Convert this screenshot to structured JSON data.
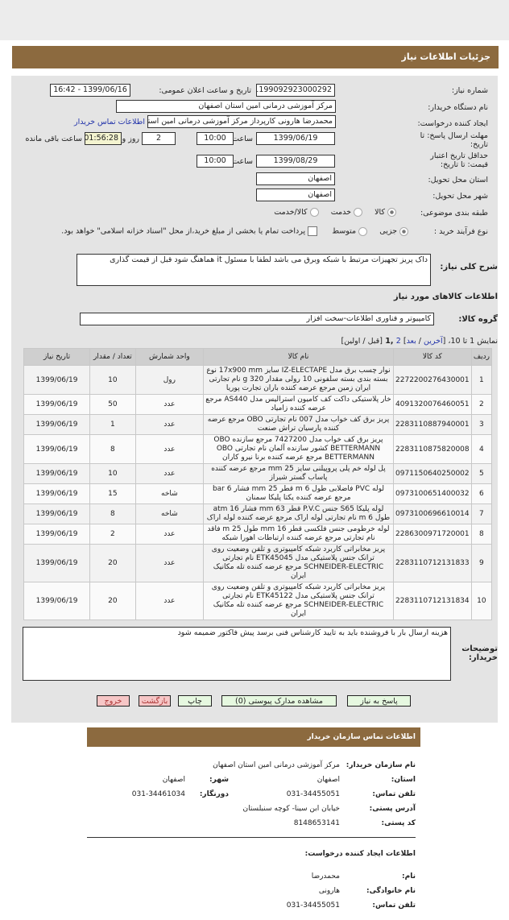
{
  "header": {
    "title": "جزئیات اطلاعات نیاز"
  },
  "form": {
    "need_number_label": "شماره نیاز:",
    "need_number": "1199092923000292",
    "announce_label": "تاریخ و ساعت اعلان عمومی:",
    "announce": "1399/06/16 - 16:42",
    "buyer_label": "نام دستگاه خریدار:",
    "buyer": "مرکز آموزشی درمانی امین استان اصفهان",
    "creator_label": "ایجاد کننده درخواست:",
    "creator": "محمدرضا هارونی کارپرداز مرکز آموزشی درمانی امین استان اصفهان",
    "contact_link": "اطلاعات تماس خریدار",
    "deadline_label": "مهلت ارسال پاسخ: تا تاریخ:",
    "deadline_date": "1399/06/19",
    "time_label": "ساعت",
    "deadline_time": "10:00",
    "days": "2",
    "days_label": "روز و",
    "remaining": "01:56:28",
    "remaining_label": "ساعت باقی مانده",
    "validity_label": "حداقل تاریخ اعتبار قیمت: تا تاریخ:",
    "validity_date": "1399/08/29",
    "validity_time": "10:00",
    "province_label": "استان محل تحویل:",
    "province": "اصفهان",
    "city_label": "شهر محل تحویل:",
    "city": "اصفهان",
    "category_label": "طبقه بندی موضوعی:",
    "category_options": [
      "کالا",
      "خدمت",
      "کالا/خدمت"
    ],
    "category_selected": "کالا",
    "process_label": "نوع فرآیند خرید :",
    "process_options": [
      "جزیی",
      "متوسط"
    ],
    "process_selected": "جزیی",
    "treasury_text": "پرداخت تمام یا بخشی از مبلغ خرید،از محل \"اسناد خزانه اسلامی\" خواهد بود.",
    "desc_label": "شرح کلی نیاز:",
    "desc": "داک پریز تجهیزات مرتبط با شبکه وبرق می باشد لطفا با مسئول it هماهنگ شود قبل از قیمت گذاری",
    "goods_heading": "اطلاعات کالاهای مورد نیاز",
    "group_label": "گروه کالا:",
    "group": "کامپیوتر و فناوری اطلاعات-سخت افزار"
  },
  "pagination": {
    "prefix": "نمایش 1 تا 10، [",
    "last": "آخرین",
    "sep": " / ",
    "next": "بعد",
    "mid": "] ",
    "p2": "2",
    "p1": " ,1 ",
    "suffix": "[قبل / اولین]"
  },
  "table": {
    "headers": [
      "ردیف",
      "کد کالا",
      "نام کالا",
      "واحد شمارش",
      "تعداد / مقدار",
      "تاریخ نیاز"
    ],
    "rows": [
      [
        "1",
        "2272200276430001",
        "نوار چسب برق مدل IZ-ELECTAPE سایز 17x900 mm نوع بسته بندی بسته سلفونی 10 رولی مقدار 320 g نام تجارتی ایران زمین مرجع عرضه کننده باران تجارت پوریا",
        "رول",
        "10",
        "1399/06/19"
      ],
      [
        "2",
        "4091320076460051",
        "خار پلاستیکی داکت کف کامیون استرالیس مدل AS440 مرجع عرضه کننده زامیاد",
        "عدد",
        "50",
        "1399/06/19"
      ],
      [
        "3",
        "2283110887940001",
        "پریز برق کف خواب مدل 007 نام تجارتی OBO مرجع عرضه کننده پارسیان تراش صنعت",
        "عدد",
        "1",
        "1399/06/19"
      ],
      [
        "4",
        "2283110875820008",
        "پریز برق کف خواب مدل 7427200 مرجع سازنده OBO BETTERMANN کشور سازنده آلمان نام تجارتی OBO BETTERMANN مرجع عرضه کننده برنا نیرو کاران",
        "عدد",
        "8",
        "1399/06/19"
      ],
      [
        "5",
        "0971150640250002",
        "پل لوله خم پلی پروپیلنی سایز 25 mm مرجع عرضه کننده پاساب گستر شیراز",
        "عدد",
        "10",
        "1399/06/19"
      ],
      [
        "6",
        "0973100651400032",
        "لوله PVC فاضلابی طول 6 m قطر 25 mm فشار 6 bar مرجع عرضه کننده یکتا پلیکا سمنان",
        "شاخه",
        "15",
        "1399/06/19"
      ],
      [
        "7",
        "0973100696610014",
        "لوله پلیکا S65 جنس P.V.C قطر 63 mm فشار 16 atm طول 6 m نام تجارتی لوله اراک مرجع عرضه کننده لوله اراک",
        "شاخه",
        "8",
        "1399/06/19"
      ],
      [
        "8",
        "2286300971720001",
        "لوله خرطومی جنس فلکسی قطر 16 mm طول 25 m فاقد نام تجارتی مرجع عرضه کننده ارتباطات اهورا شبکه",
        "عدد",
        "2",
        "1399/06/19"
      ],
      [
        "9",
        "2283110712131833",
        "پریز مخابراتی کاربرد شبکه کامپیوتری و تلفن وضعیت روی ترانک جنس پلاستیکی مدل ETK45045 نام تجارتی SCHNEIDER-ELECTRIC مرجع عرضه کننده تله مکانیک ایران",
        "عدد",
        "20",
        "1399/06/19"
      ],
      [
        "10",
        "2283110712131834",
        "پریز مخابراتی کاربرد شبکه کامپیوتری و تلفن وضعیت روی ترانک جنس پلاستیکی مدل ETK45122 نام تجارتی SCHNEIDER-ELECTRIC مرجع عرضه کننده تله مکانیک ایران",
        "عدد",
        "20",
        "1399/06/19"
      ]
    ]
  },
  "notes": {
    "label": "توضیحات خریدار:",
    "text": "هزینه ارسال بار با فروشنده باید به تایید کارشناس فنی برسد پیش فاکتور ضمیمه شود"
  },
  "buttons": {
    "reply": "پاسخ به نیاز",
    "attachments": "مشاهده مدارک پیوستی (0)",
    "print": "چاپ",
    "back": "بازگشت",
    "exit": "خروج"
  },
  "contact": {
    "title": "اطلاعات تماس سازمان خریدار",
    "org_label": "نام سازمان خریدار:",
    "org": "مرکز آموزشی درمانی امین استان اصفهان",
    "province_label": "استان:",
    "province": "اصفهان",
    "city_label": "شهر:",
    "city": "اصفهان",
    "phone_label": "تلفن تماس:",
    "phone": "031-34455051",
    "fax_label": "دورنگار:",
    "fax": "031-34461034",
    "address_label": "آدرس پستی:",
    "address": "خیابان ابن سینا- کوچه سنبلستان",
    "postal_label": "کد پستی:",
    "postal": "8148653141",
    "creator_heading": "اطلاعات ایجاد کننده درخواست:",
    "first_label": "نام:",
    "first": "محمدرضا",
    "last_label": "نام خانوادگی:",
    "last": "هارونی",
    "cphone_label": "تلفن تماس:",
    "cphone": "031-34455051"
  },
  "colors": {
    "header": "#8c6a3f",
    "panel": "#e4e4e4",
    "green_button": "#e6f8e0",
    "red_button": "#f6c6c6",
    "link": "#2233aa"
  }
}
